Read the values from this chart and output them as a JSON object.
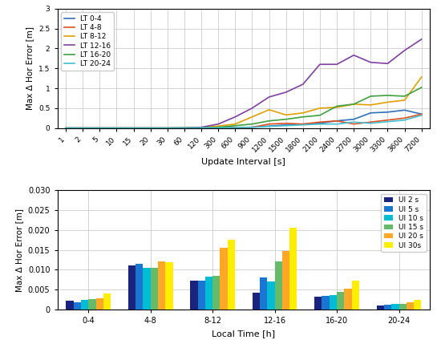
{
  "line_x_labels": [
    "1",
    "2",
    "5",
    "10",
    "15",
    "20",
    "30",
    "60",
    "120",
    "300",
    "600",
    "900",
    "1200",
    "1500",
    "1800",
    "2100",
    "2400",
    "2700",
    "3000",
    "3300",
    "3600",
    "7200"
  ],
  "line_x_positions": [
    0,
    1,
    2,
    3,
    4,
    5,
    6,
    7,
    8,
    9,
    10,
    11,
    12,
    13,
    14,
    15,
    16,
    17,
    18,
    19,
    20,
    21
  ],
  "line_data": {
    "LT 0-4": [
      0.0,
      0.0,
      0.0,
      0.0,
      0.0,
      0.0,
      0.0,
      0.0,
      0.003,
      0.005,
      0.01,
      0.02,
      0.05,
      0.08,
      0.1,
      0.12,
      0.18,
      0.22,
      0.38,
      0.4,
      0.45,
      0.35
    ],
    "LT 4-8": [
      0.0,
      0.0,
      0.0,
      0.0,
      0.0,
      0.0,
      0.0,
      0.0,
      0.003,
      0.005,
      0.01,
      0.02,
      0.1,
      0.12,
      0.1,
      0.15,
      0.18,
      0.1,
      0.15,
      0.2,
      0.25,
      0.35
    ],
    "LT 8-12": [
      0.0,
      0.0,
      0.0,
      0.0,
      0.0,
      0.0,
      0.0,
      0.003,
      0.01,
      0.05,
      0.1,
      0.28,
      0.46,
      0.33,
      0.38,
      0.5,
      0.52,
      0.6,
      0.58,
      0.65,
      0.7,
      1.28
    ],
    "LT 12-16": [
      0.0,
      0.0,
      0.0,
      0.0,
      0.0,
      0.0,
      0.0,
      0.005,
      0.02,
      0.1,
      0.28,
      0.5,
      0.78,
      0.9,
      1.1,
      1.6,
      1.6,
      1.83,
      1.65,
      1.62,
      1.95,
      2.23
    ],
    "LT 16-20": [
      0.0,
      0.0,
      0.0,
      0.0,
      0.0,
      0.0,
      0.0,
      0.003,
      0.005,
      0.02,
      0.06,
      0.1,
      0.18,
      0.22,
      0.28,
      0.32,
      0.55,
      0.6,
      0.8,
      0.82,
      0.8,
      1.02
    ],
    "LT 20-24": [
      0.0,
      0.0,
      0.0,
      0.0,
      0.0,
      0.0,
      0.0,
      0.0,
      0.003,
      0.005,
      0.01,
      0.02,
      0.04,
      0.06,
      0.08,
      0.1,
      0.1,
      0.15,
      0.12,
      0.16,
      0.2,
      0.32
    ]
  },
  "line_colors": {
    "LT 0-4": "#3070b8",
    "LT 4-8": "#e05020",
    "LT 8-12": "#e0a000",
    "LT 12-16": "#8040a0",
    "LT 16-20": "#40a040",
    "LT 20-24": "#40c0d0"
  },
  "bar_categories": [
    "0-4",
    "4-8",
    "8-12",
    "12-16",
    "16-20",
    "20-24"
  ],
  "bar_data": {
    "UI 2 s": [
      0.0022,
      0.011,
      0.0072,
      0.0042,
      0.0032,
      0.001
    ],
    "UI 5 s": [
      0.0018,
      0.0115,
      0.0073,
      0.008,
      0.0035,
      0.0012
    ],
    "UI 10 s": [
      0.0025,
      0.0105,
      0.0083,
      0.007,
      0.0037,
      0.0015
    ],
    "UI 15 s": [
      0.0027,
      0.0105,
      0.0085,
      0.0122,
      0.0045,
      0.0015
    ],
    "UI 20 s": [
      0.0028,
      0.0122,
      0.0155,
      0.0148,
      0.0052,
      0.0018
    ],
    "UI 30s": [
      0.004,
      0.012,
      0.0175,
      0.0205,
      0.0072,
      0.0024
    ]
  },
  "bar_colors": {
    "UI 2 s": "#1a237e",
    "UI 5 s": "#1976d2",
    "UI 10 s": "#00bcd4",
    "UI 15 s": "#66bb6a",
    "UI 20 s": "#ffa726",
    "UI 30s": "#ffee00"
  },
  "line_ylabel": "Max Δ Hor Error [m]",
  "line_xlabel": "Update Interval [s]",
  "bar_ylabel": "Max Δ Hor Error [m]",
  "bar_xlabel": "Local Time [h]",
  "line_ylim": [
    0,
    3
  ],
  "line_yticks": [
    0,
    0.5,
    1.0,
    1.5,
    2.0,
    2.5,
    3.0
  ],
  "line_ytick_labels": [
    "0",
    "0.5",
    "1",
    "1.5",
    "2",
    "2.5",
    "3"
  ],
  "bar_ylim": [
    0,
    0.03
  ],
  "bar_yticks": [
    0,
    0.005,
    0.01,
    0.015,
    0.02,
    0.025,
    0.03
  ],
  "bar_ytick_labels": [
    "0",
    "0.005",
    "0.010",
    "0.015",
    "0.020",
    "0.025",
    "0.030"
  ],
  "bg_color": "#ffffff",
  "grid_color": "#cccccc"
}
